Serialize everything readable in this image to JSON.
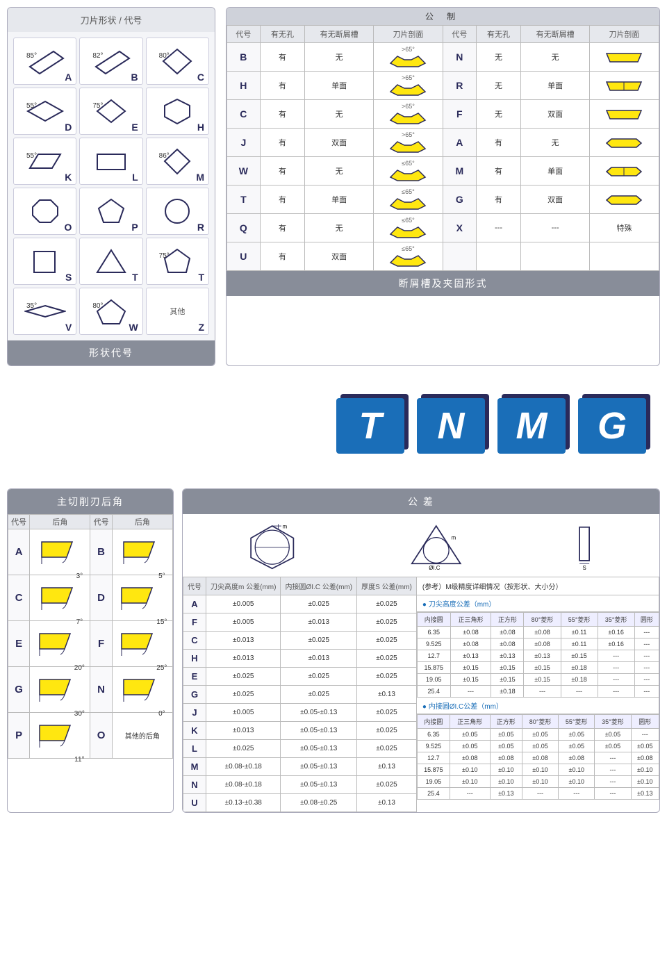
{
  "colors": {
    "accent_blue": "#1a6eb8",
    "yellow_fill": "#ffe710",
    "dark_stroke": "#2a2a5a",
    "header_gray": "#888d99",
    "light_gray_bg": "#e6e8ed"
  },
  "shape_panel": {
    "title": "刀片形状 / 代号",
    "footer": "形状代号",
    "shapes": [
      {
        "code": "A",
        "angle": "85°",
        "type": "rhombus"
      },
      {
        "code": "B",
        "angle": "82°",
        "type": "rhombus"
      },
      {
        "code": "C",
        "angle": "80°",
        "type": "diamond80"
      },
      {
        "code": "D",
        "angle": "55°",
        "type": "diamond55"
      },
      {
        "code": "E",
        "angle": "75°",
        "type": "diamond75"
      },
      {
        "code": "H",
        "angle": "",
        "type": "hexagon"
      },
      {
        "code": "K",
        "angle": "55°",
        "type": "parallelogram"
      },
      {
        "code": "L",
        "angle": "",
        "type": "rectangle"
      },
      {
        "code": "M",
        "angle": "86°",
        "type": "diamond86"
      },
      {
        "code": "O",
        "angle": "",
        "type": "octagon"
      },
      {
        "code": "P",
        "angle": "",
        "type": "pentagon"
      },
      {
        "code": "R",
        "angle": "",
        "type": "circle"
      },
      {
        "code": "S",
        "angle": "",
        "type": "square"
      },
      {
        "code": "T",
        "angle": "",
        "type": "triangle"
      },
      {
        "code": "T",
        "angle": "75°",
        "type": "pentagon75"
      },
      {
        "code": "V",
        "angle": "35°",
        "type": "diamond35"
      },
      {
        "code": "W",
        "angle": "80°",
        "type": "trigon80"
      },
      {
        "code": "Z",
        "angle": "",
        "type": "other",
        "label": "其他"
      }
    ]
  },
  "chip_panel": {
    "header": "公  制",
    "footer": "断屑槽及夹固形式",
    "columns": [
      "代号",
      "有无孔",
      "有无断屑槽",
      "刀片剖面",
      "代号",
      "有无孔",
      "有无断屑槽",
      "刀片剖面"
    ],
    "rows": [
      {
        "c1": "B",
        "h1": "有",
        "b1": "无",
        "p1": ">65°",
        "c2": "N",
        "h2": "无",
        "b2": "无",
        "p2": ""
      },
      {
        "c1": "H",
        "h1": "有",
        "b1": "单面",
        "p1": ">65°",
        "c2": "R",
        "h2": "无",
        "b2": "单面",
        "p2": ""
      },
      {
        "c1": "C",
        "h1": "有",
        "b1": "无",
        "p1": ">65°",
        "c2": "F",
        "h2": "无",
        "b2": "双面",
        "p2": ""
      },
      {
        "c1": "J",
        "h1": "有",
        "b1": "双面",
        "p1": ">65°",
        "c2": "A",
        "h2": "有",
        "b2": "无",
        "p2": ""
      },
      {
        "c1": "W",
        "h1": "有",
        "b1": "无",
        "p1": "≤65°",
        "c2": "M",
        "h2": "有",
        "b2": "单面",
        "p2": ""
      },
      {
        "c1": "T",
        "h1": "有",
        "b1": "单面",
        "p1": "≤65°",
        "c2": "G",
        "h2": "有",
        "b2": "双面",
        "p2": ""
      },
      {
        "c1": "Q",
        "h1": "有",
        "b1": "无",
        "p1": "≤65°",
        "c2": "X",
        "h2": "---",
        "b2": "---",
        "p2": "特殊"
      },
      {
        "c1": "U",
        "h1": "有",
        "b1": "双面",
        "p1": "≤65°",
        "c2": "",
        "h2": "",
        "b2": "",
        "p2": ""
      }
    ]
  },
  "tnmg": [
    "T",
    "N",
    "M",
    "G"
  ],
  "relief_panel": {
    "header": "主切削刃后角",
    "columns": [
      "代号",
      "后角",
      "代号",
      "后角"
    ],
    "rows": [
      {
        "c1": "A",
        "a1": "3°",
        "c2": "B",
        "a2": "5°"
      },
      {
        "c1": "C",
        "a1": "7°",
        "c2": "D",
        "a2": "15°"
      },
      {
        "c1": "E",
        "a1": "20°",
        "c2": "F",
        "a2": "25°"
      },
      {
        "c1": "G",
        "a1": "30°",
        "c2": "N",
        "a2": "0°"
      },
      {
        "c1": "P",
        "a1": "11°",
        "c2": "O",
        "a2_label": "其他的后角"
      }
    ]
  },
  "tolerance_panel": {
    "header": "公   差",
    "diagram_labels": {
      "m": "m",
      "ic": "ØI.C",
      "s": "S"
    },
    "left_columns": [
      "代号",
      "刀尖高度m 公差(mm)",
      "内接圆ØI.C 公差(mm)",
      "厚度S 公差(mm)"
    ],
    "left_rows": [
      {
        "c": "A",
        "m_tol": "±0.005",
        "ic": "±0.025",
        "s": "±0.025"
      },
      {
        "c": "F",
        "m_tol": "±0.005",
        "ic": "±0.013",
        "s": "±0.025"
      },
      {
        "c": "C",
        "m_tol": "±0.013",
        "ic": "±0.025",
        "s": "±0.025"
      },
      {
        "c": "H",
        "m_tol": "±0.013",
        "ic": "±0.013",
        "s": "±0.025"
      },
      {
        "c": "E",
        "m_tol": "±0.025",
        "ic": "±0.025",
        "s": "±0.025"
      },
      {
        "c": "G",
        "m_tol": "±0.025",
        "ic": "±0.025",
        "s": "±0.13"
      },
      {
        "c": "J",
        "m_tol": "±0.005",
        "ic": "±0.05-±0.13",
        "s": "±0.025"
      },
      {
        "c": "K",
        "m_tol": "±0.013",
        "ic": "±0.05-±0.13",
        "s": "±0.025"
      },
      {
        "c": "L",
        "m_tol": "±0.025",
        "ic": "±0.05-±0.13",
        "s": "±0.025"
      },
      {
        "c": "M",
        "m_tol": "±0.08-±0.18",
        "ic": "±0.05-±0.13",
        "s": "±0.13"
      },
      {
        "c": "N",
        "m_tol": "±0.08-±0.18",
        "ic": "±0.05-±0.13",
        "s": "±0.025"
      },
      {
        "c": "U",
        "m_tol": "±0.13-±0.38",
        "ic": "±0.08-±0.25",
        "s": "±0.13"
      }
    ],
    "ref_header": "(参考）M级精度详细情况（按形状、大小分）",
    "sub1_header": "● 刀尖高度公差（mm）",
    "sub2_header": "● 内接圆ØI.C公差（mm）",
    "detail_columns": [
      "内接圆",
      "正三角形",
      "正方形",
      "80°菱形",
      "55°菱形",
      "35°菱形",
      "圆形"
    ],
    "detail1_rows": [
      [
        "6.35",
        "±0.08",
        "±0.08",
        "±0.08",
        "±0.11",
        "±0.16",
        "---"
      ],
      [
        "9.525",
        "±0.08",
        "±0.08",
        "±0.08",
        "±0.11",
        "±0.16",
        "---"
      ],
      [
        "12.7",
        "±0.13",
        "±0.13",
        "±0.13",
        "±0.15",
        "---",
        "---"
      ],
      [
        "15.875",
        "±0.15",
        "±0.15",
        "±0.15",
        "±0.18",
        "---",
        "---"
      ],
      [
        "19.05",
        "±0.15",
        "±0.15",
        "±0.15",
        "±0.18",
        "---",
        "---"
      ],
      [
        "25.4",
        "---",
        "±0.18",
        "---",
        "---",
        "---",
        "---"
      ]
    ],
    "detail2_rows": [
      [
        "6.35",
        "±0.05",
        "±0.05",
        "±0.05",
        "±0.05",
        "±0.05",
        "---"
      ],
      [
        "9.525",
        "±0.05",
        "±0.05",
        "±0.05",
        "±0.05",
        "±0.05",
        "±0.05"
      ],
      [
        "12.7",
        "±0.08",
        "±0.08",
        "±0.08",
        "±0.08",
        "---",
        "±0.08"
      ],
      [
        "15.875",
        "±0.10",
        "±0.10",
        "±0.10",
        "±0.10",
        "---",
        "±0.10"
      ],
      [
        "19.05",
        "±0.10",
        "±0.10",
        "±0.10",
        "±0.10",
        "---",
        "±0.10"
      ],
      [
        "25.4",
        "---",
        "±0.13",
        "---",
        "---",
        "---",
        "±0.13"
      ]
    ]
  }
}
